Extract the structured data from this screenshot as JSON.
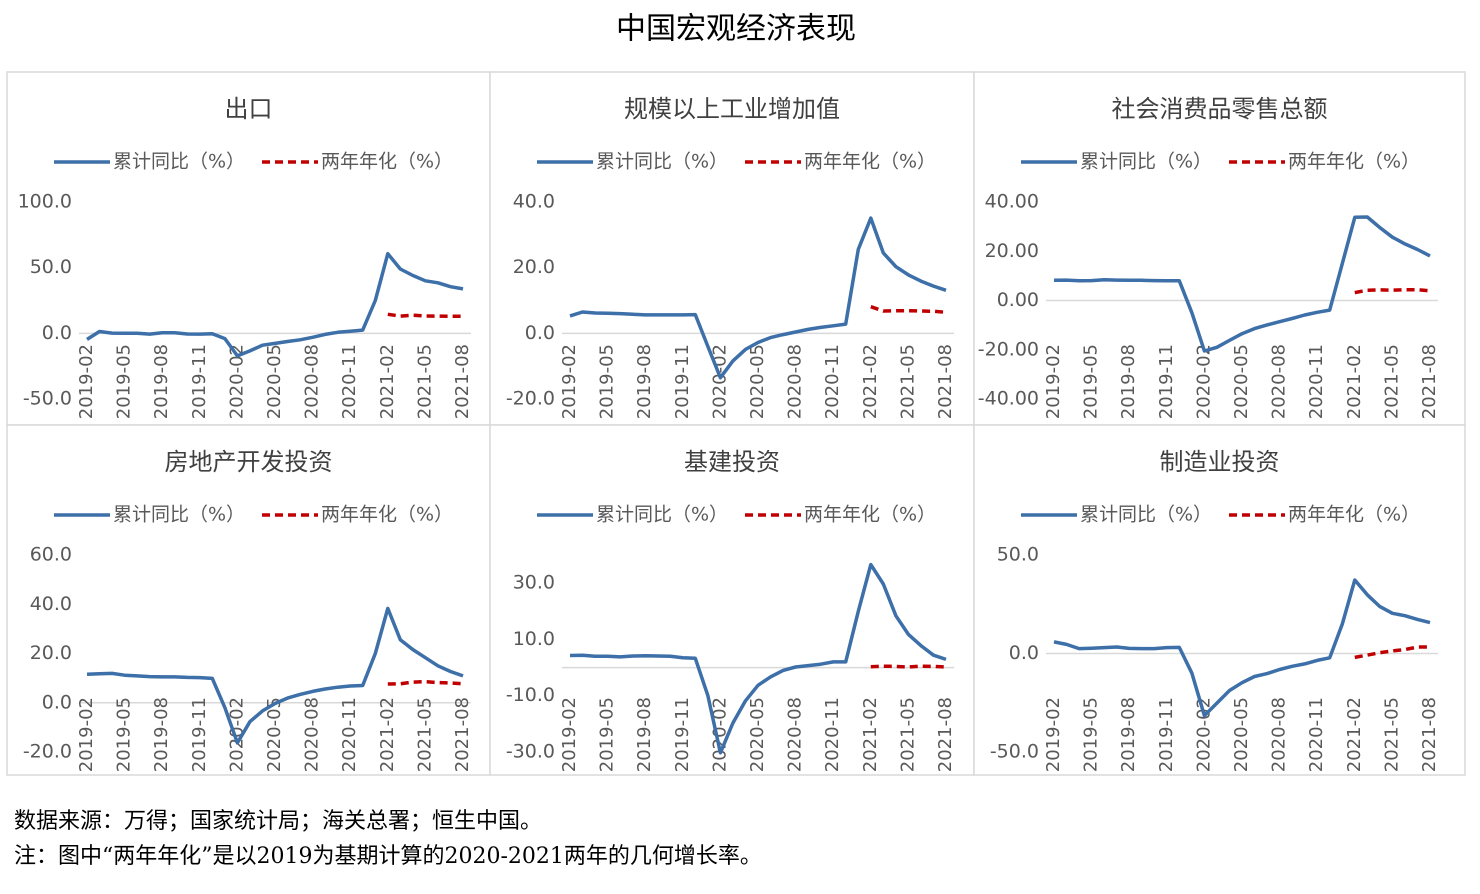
{
  "title": "中国宏观经济表现",
  "notes": [
    "数据来源：万得；国家统计局；海关总署；恒生中国。",
    "注：图中“两年年化”是以2019为基期计算的2020-2021两年的几何增长率。"
  ],
  "chart_data": [
    {
      "type": "line",
      "title": "出口",
      "categories": [
        "2019-02",
        null,
        null,
        "2019-05",
        null,
        null,
        "2019-08",
        null,
        null,
        "2019-11",
        null,
        null,
        "2020-02",
        null,
        null,
        "2020-05",
        null,
        null,
        "2020-08",
        null,
        null,
        "2020-11",
        null,
        null,
        "2021-02",
        null,
        null,
        "2021-05",
        null,
        null,
        "2021-08"
      ],
      "series": [
        {
          "name": "累计同比（%）",
          "color": "#3d6fa8",
          "values": [
            -4.6,
            1.4,
            0.2,
            0.1,
            0.0,
            -0.6,
            0.5,
            0.4,
            -0.5,
            -0.6,
            -0.3,
            -4.0,
            -17.2,
            -13.4,
            -9.0,
            -7.7,
            -6.2,
            -4.9,
            -3.0,
            -0.8,
            0.8,
            1.6,
            2.5,
            25.0,
            60.6,
            49.0,
            44.0,
            40.0,
            38.5,
            35.5,
            33.8
          ]
        },
        {
          "name": "两年年化（%）",
          "color": "#c00000",
          "dashed": true,
          "values": [
            null,
            null,
            null,
            null,
            null,
            null,
            null,
            null,
            null,
            null,
            null,
            null,
            null,
            null,
            null,
            null,
            null,
            null,
            null,
            null,
            null,
            null,
            null,
            null,
            14.5,
            13.1,
            13.8,
            13.2,
            13.1,
            13.0,
            13.0
          ]
        }
      ],
      "ylim": [
        -50,
        100
      ],
      "yticks": [
        {
          "value": -50,
          "label": "-50.0"
        },
        {
          "value": 0,
          "label": "0.0"
        },
        {
          "value": 50,
          "label": "50.0"
        },
        {
          "value": 100,
          "label": "100.0"
        }
      ]
    },
    {
      "type": "line",
      "title": "规模以上工业增加值",
      "categories": [
        "2019-02",
        null,
        null,
        "2019-05",
        null,
        null,
        "2019-08",
        null,
        null,
        "2019-11",
        null,
        null,
        "2020-02",
        null,
        null,
        "2020-05",
        null,
        null,
        "2020-08",
        null,
        null,
        "2020-11",
        null,
        null,
        "2021-02",
        null,
        null,
        "2021-05",
        null,
        null,
        "2021-08"
      ],
      "series": [
        {
          "name": "累计同比（%）",
          "color": "#3d6fa8",
          "values": [
            5.3,
            6.5,
            6.2,
            6.1,
            6.0,
            5.8,
            5.6,
            5.6,
            5.6,
            5.6,
            5.7,
            -4.0,
            -13.5,
            -8.4,
            -4.9,
            -2.8,
            -1.3,
            -0.4,
            0.4,
            1.2,
            1.8,
            2.3,
            2.8,
            25.6,
            35.1,
            24.5,
            20.3,
            17.8,
            15.9,
            14.4,
            13.1
          ]
        },
        {
          "name": "两年年化（%）",
          "color": "#c00000",
          "dashed": true,
          "values": [
            null,
            null,
            null,
            null,
            null,
            null,
            null,
            null,
            null,
            null,
            null,
            null,
            null,
            null,
            null,
            null,
            null,
            null,
            null,
            null,
            null,
            null,
            null,
            null,
            8.1,
            6.8,
            6.9,
            6.9,
            6.8,
            6.7,
            6.4
          ]
        }
      ],
      "ylim": [
        -20,
        40
      ],
      "yticks": [
        {
          "value": -20,
          "label": "-20.0"
        },
        {
          "value": 0,
          "label": "0.0"
        },
        {
          "value": 20,
          "label": "20.0"
        },
        {
          "value": 40,
          "label": "40.0"
        }
      ]
    },
    {
      "type": "line",
      "title": "社会消费品零售总额",
      "categories": [
        "2019-02",
        null,
        null,
        "2019-05",
        null,
        null,
        "2019-08",
        null,
        null,
        "2019-11",
        null,
        null,
        "2020-02",
        null,
        null,
        "2020-05",
        null,
        null,
        "2020-08",
        null,
        null,
        "2020-11",
        null,
        null,
        "2021-02",
        null,
        null,
        "2021-05",
        null,
        null,
        "2021-08"
      ],
      "series": [
        {
          "name": "累计同比（%）",
          "color": "#3d6fa8",
          "values": [
            8.2,
            8.3,
            8.0,
            8.1,
            8.4,
            8.3,
            8.2,
            8.2,
            8.1,
            8.0,
            8.0,
            -5.0,
            -20.5,
            -19.0,
            -16.2,
            -13.5,
            -11.4,
            -9.9,
            -8.6,
            -7.3,
            -5.9,
            -4.8,
            -3.9,
            15.0,
            33.8,
            33.9,
            29.6,
            25.7,
            23.0,
            20.7,
            18.1
          ]
        },
        {
          "name": "两年年化（%）",
          "color": "#c00000",
          "dashed": true,
          "values": [
            null,
            null,
            null,
            null,
            null,
            null,
            null,
            null,
            null,
            null,
            null,
            null,
            null,
            null,
            null,
            null,
            null,
            null,
            null,
            null,
            null,
            null,
            null,
            null,
            3.2,
            4.2,
            4.3,
            4.2,
            4.4,
            4.4,
            3.9
          ]
        }
      ],
      "ylim": [
        -40,
        40
      ],
      "yticks": [
        {
          "value": -40,
          "label": "-40.00"
        },
        {
          "value": -20,
          "label": "-20.00"
        },
        {
          "value": 0,
          "label": "0.00"
        },
        {
          "value": 20,
          "label": "20.00"
        },
        {
          "value": 40,
          "label": "40.00"
        }
      ]
    },
    {
      "type": "line",
      "title": "房地产开发投资",
      "categories": [
        "2019-02",
        null,
        null,
        "2019-05",
        null,
        null,
        "2019-08",
        null,
        null,
        "2019-11",
        null,
        null,
        "2020-02",
        null,
        null,
        "2020-05",
        null,
        null,
        "2020-08",
        null,
        null,
        "2020-11",
        null,
        null,
        "2021-02",
        null,
        null,
        "2021-05",
        null,
        null,
        "2021-08"
      ],
      "series": [
        {
          "name": "累计同比（%）",
          "color": "#3d6fa8",
          "values": [
            11.6,
            11.8,
            11.9,
            11.2,
            10.9,
            10.6,
            10.5,
            10.5,
            10.3,
            10.2,
            9.9,
            -2.0,
            -16.3,
            -7.7,
            -3.3,
            -0.3,
            1.9,
            3.4,
            4.6,
            5.6,
            6.3,
            6.8,
            7.0,
            20.0,
            38.3,
            25.6,
            21.6,
            18.3,
            15.0,
            12.7,
            10.9
          ]
        },
        {
          "name": "两年年化（%）",
          "color": "#c00000",
          "dashed": true,
          "values": [
            null,
            null,
            null,
            null,
            null,
            null,
            null,
            null,
            null,
            null,
            null,
            null,
            null,
            null,
            null,
            null,
            null,
            null,
            null,
            null,
            null,
            null,
            null,
            null,
            7.6,
            7.7,
            8.4,
            8.6,
            8.2,
            8.0,
            7.7
          ]
        }
      ],
      "ylim": [
        -20,
        60
      ],
      "yticks": [
        {
          "value": -20,
          "label": "-20.0"
        },
        {
          "value": 0,
          "label": "0.0"
        },
        {
          "value": 20,
          "label": "20.0"
        },
        {
          "value": 40,
          "label": "40.0"
        },
        {
          "value": 60,
          "label": "60.0"
        }
      ]
    },
    {
      "type": "line",
      "title": "基建投资",
      "categories": [
        "2019-02",
        null,
        null,
        "2019-05",
        null,
        null,
        "2019-08",
        null,
        null,
        "2019-11",
        null,
        null,
        "2020-02",
        null,
        null,
        "2020-05",
        null,
        null,
        "2020-08",
        null,
        null,
        "2020-11",
        null,
        null,
        "2021-02",
        null,
        null,
        "2021-05",
        null,
        null,
        "2021-08"
      ],
      "series": [
        {
          "name": "累计同比（%）",
          "color": "#3d6fa8",
          "values": [
            4.3,
            4.4,
            4.0,
            4.0,
            3.8,
            4.1,
            4.2,
            4.1,
            4.0,
            3.5,
            3.3,
            -10.0,
            -30.3,
            -19.7,
            -11.8,
            -6.3,
            -3.3,
            -1.0,
            0.2,
            0.7,
            1.2,
            2.0,
            2.0,
            20.0,
            36.6,
            29.7,
            18.4,
            11.8,
            7.8,
            4.4,
            2.9
          ]
        },
        {
          "name": "两年年化（%）",
          "color": "#c00000",
          "dashed": true,
          "values": [
            null,
            null,
            null,
            null,
            null,
            null,
            null,
            null,
            null,
            null,
            null,
            null,
            null,
            null,
            null,
            null,
            null,
            null,
            null,
            null,
            null,
            null,
            null,
            null,
            0.3,
            0.5,
            0.4,
            0.2,
            0.5,
            0.4,
            0.2
          ]
        }
      ],
      "ylim": [
        -30,
        40
      ],
      "yticks": [
        {
          "value": -30,
          "label": "-30.0"
        },
        {
          "value": -10,
          "label": "-10.0"
        },
        {
          "value": 10,
          "label": "10.0"
        },
        {
          "value": 30,
          "label": "30.0"
        }
      ]
    },
    {
      "type": "line",
      "title": "制造业投资",
      "categories": [
        "2019-02",
        null,
        null,
        "2019-05",
        null,
        null,
        "2019-08",
        null,
        null,
        "2019-11",
        null,
        null,
        "2020-02",
        null,
        null,
        "2020-05",
        null,
        null,
        "2020-08",
        null,
        null,
        "2020-11",
        null,
        null,
        "2021-02",
        null,
        null,
        "2021-05",
        null,
        null,
        "2021-08"
      ],
      "series": [
        {
          "name": "累计同比（%）",
          "color": "#3d6fa8",
          "values": [
            5.9,
            4.6,
            2.5,
            2.7,
            3.0,
            3.3,
            2.6,
            2.5,
            2.5,
            3.0,
            3.1,
            -10.0,
            -31.5,
            -25.2,
            -18.8,
            -14.8,
            -11.7,
            -10.2,
            -8.1,
            -6.5,
            -5.3,
            -3.5,
            -2.2,
            15.0,
            37.3,
            29.8,
            23.8,
            20.4,
            19.2,
            17.3,
            15.7
          ]
        },
        {
          "name": "两年年化（%）",
          "color": "#c00000",
          "dashed": true,
          "values": [
            null,
            null,
            null,
            null,
            null,
            null,
            null,
            null,
            null,
            null,
            null,
            null,
            null,
            null,
            null,
            null,
            null,
            null,
            null,
            null,
            null,
            null,
            null,
            null,
            -2.0,
            -0.8,
            0.4,
            1.3,
            2.0,
            3.3,
            3.3
          ]
        }
      ],
      "ylim": [
        -50,
        50
      ],
      "yticks": [
        {
          "value": -50,
          "label": "-50.0"
        },
        {
          "value": 0,
          "label": "0.0"
        },
        {
          "value": 50,
          "label": "50.0"
        }
      ]
    }
  ]
}
